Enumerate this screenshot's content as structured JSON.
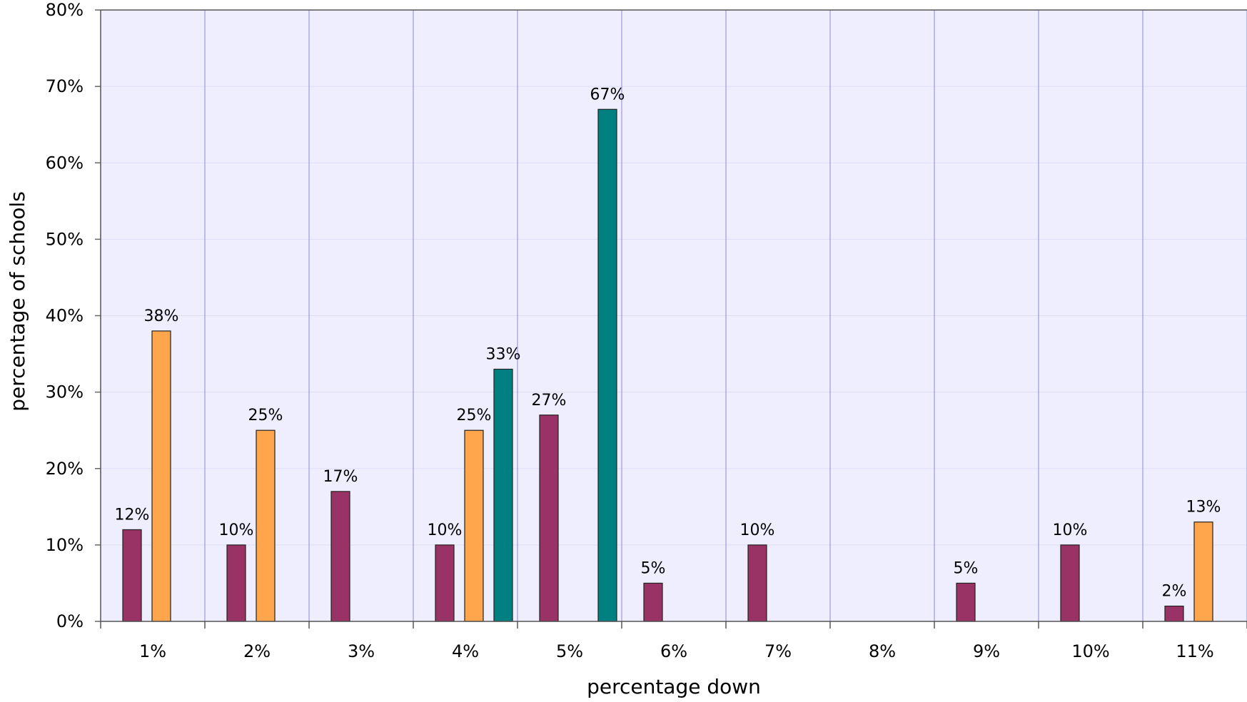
{
  "chart_data": {
    "type": "bar",
    "categories": [
      "1%",
      "2%",
      "3%",
      "4%",
      "5%",
      "6%",
      "7%",
      "8%",
      "9%",
      "10%",
      "11%"
    ],
    "series": [
      {
        "color": "#993366",
        "values": [
          12,
          10,
          17,
          10,
          27,
          5,
          10,
          null,
          5,
          10,
          2
        ],
        "labels": [
          "12%",
          "10%",
          "17%",
          "10%",
          "27%",
          "5%",
          "10%",
          null,
          "5%",
          "10%",
          "2%"
        ]
      },
      {
        "color": "#FFA64D",
        "values": [
          38,
          25,
          null,
          25,
          null,
          null,
          null,
          null,
          null,
          null,
          13
        ],
        "labels": [
          "38%",
          "25%",
          null,
          "25%",
          null,
          null,
          null,
          null,
          null,
          null,
          "13%"
        ]
      },
      {
        "color": "#008080",
        "values": [
          null,
          null,
          null,
          33,
          67,
          null,
          null,
          null,
          null,
          null,
          null
        ],
        "labels": [
          null,
          null,
          null,
          "33%",
          "67%",
          null,
          null,
          null,
          null,
          null,
          null
        ]
      }
    ],
    "xlabel": "percentage down",
    "ylabel": "percentage of schools",
    "ylim": [
      0,
      80
    ],
    "yticks": [
      "0%",
      "10%",
      "20%",
      "30%",
      "40%",
      "50%",
      "60%",
      "70%",
      "80%"
    ],
    "grid": true,
    "plot_background": "#EEEEFF",
    "gridline_color": "#8888DD"
  }
}
